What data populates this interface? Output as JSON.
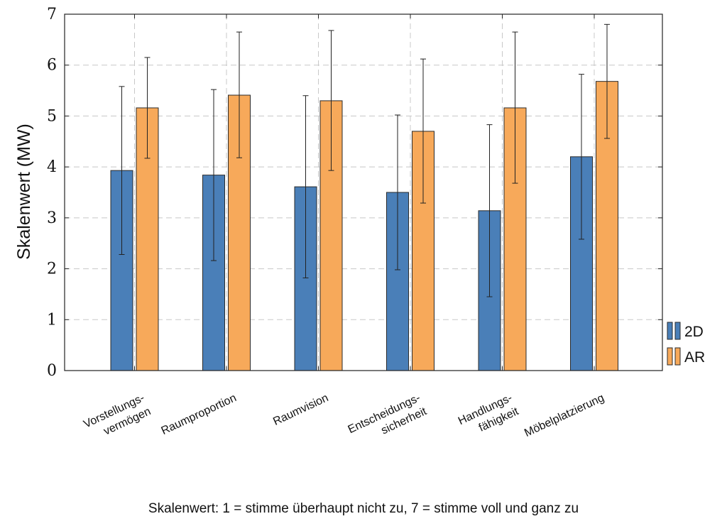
{
  "chart_data": {
    "type": "bar",
    "ylabel": "Skalenwert (MW)",
    "ylim": [
      0,
      7
    ],
    "yticks": [
      "0",
      "1",
      "2",
      "3",
      "4",
      "5",
      "6",
      "7"
    ],
    "grid": true,
    "legend_position": "right",
    "categories": [
      [
        "Vorstellungs-",
        "vermögen"
      ],
      [
        "Raumproportion"
      ],
      [
        "Raumvision"
      ],
      [
        "Entscheidungs-",
        "sicherheit"
      ],
      [
        "Handlungs-",
        "fähigkeit"
      ],
      [
        "Möbelplatzierung"
      ]
    ],
    "series": [
      {
        "name": "2D",
        "color": "#4a7fb8",
        "values": [
          3.93,
          3.84,
          3.61,
          3.5,
          3.14,
          4.2
        ],
        "error_low": [
          2.28,
          2.16,
          1.82,
          1.98,
          1.45,
          2.58
        ],
        "error_high": [
          5.58,
          5.52,
          5.4,
          5.02,
          4.83,
          5.82
        ]
      },
      {
        "name": "AR",
        "color": "#f7a95a",
        "values": [
          5.16,
          5.41,
          5.3,
          4.7,
          5.16,
          5.68
        ],
        "error_low": [
          4.17,
          4.18,
          3.93,
          3.29,
          3.68,
          4.56
        ],
        "error_high": [
          6.15,
          6.65,
          6.68,
          6.12,
          6.65,
          6.8
        ]
      }
    ]
  },
  "caption": "Skalenwert: 1 = stimme überhaupt nicht zu, 7 = stimme voll und ganz zu"
}
